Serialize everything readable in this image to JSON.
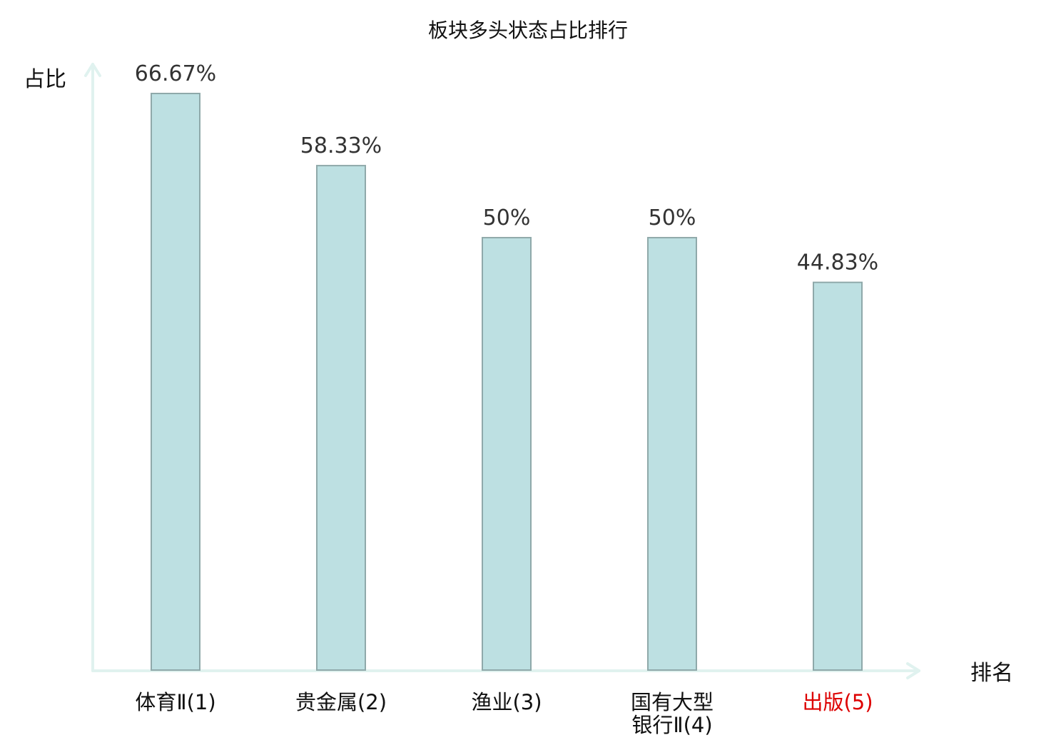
{
  "chart_data": {
    "type": "bar",
    "title": "板块多头状态占比排行",
    "ylabel": "占比",
    "xlabel": "排名",
    "categories": [
      {
        "lines": [
          "体育Ⅱ(1)"
        ],
        "highlight": false
      },
      {
        "lines": [
          "贵金属(2)"
        ],
        "highlight": false
      },
      {
        "lines": [
          "渔业(3)"
        ],
        "highlight": false
      },
      {
        "lines": [
          "国有大型",
          "银行Ⅱ(4)"
        ],
        "highlight": false
      },
      {
        "lines": [
          "出版(5)"
        ],
        "highlight": true
      }
    ],
    "values": [
      66.67,
      58.33,
      50,
      50,
      44.83
    ],
    "value_labels": [
      "66.67%",
      "58.33%",
      "50%",
      "50%",
      "44.83%"
    ],
    "ylim": [
      0,
      66.67
    ],
    "grid": false,
    "legend": "none",
    "colors": {
      "bar_fill": "#bde0e2",
      "bar_stroke": "#8fa9aa",
      "axis": "#e0f2ef",
      "text": "#111111",
      "value_text": "#333333",
      "highlight_text": "#dd0000"
    }
  }
}
